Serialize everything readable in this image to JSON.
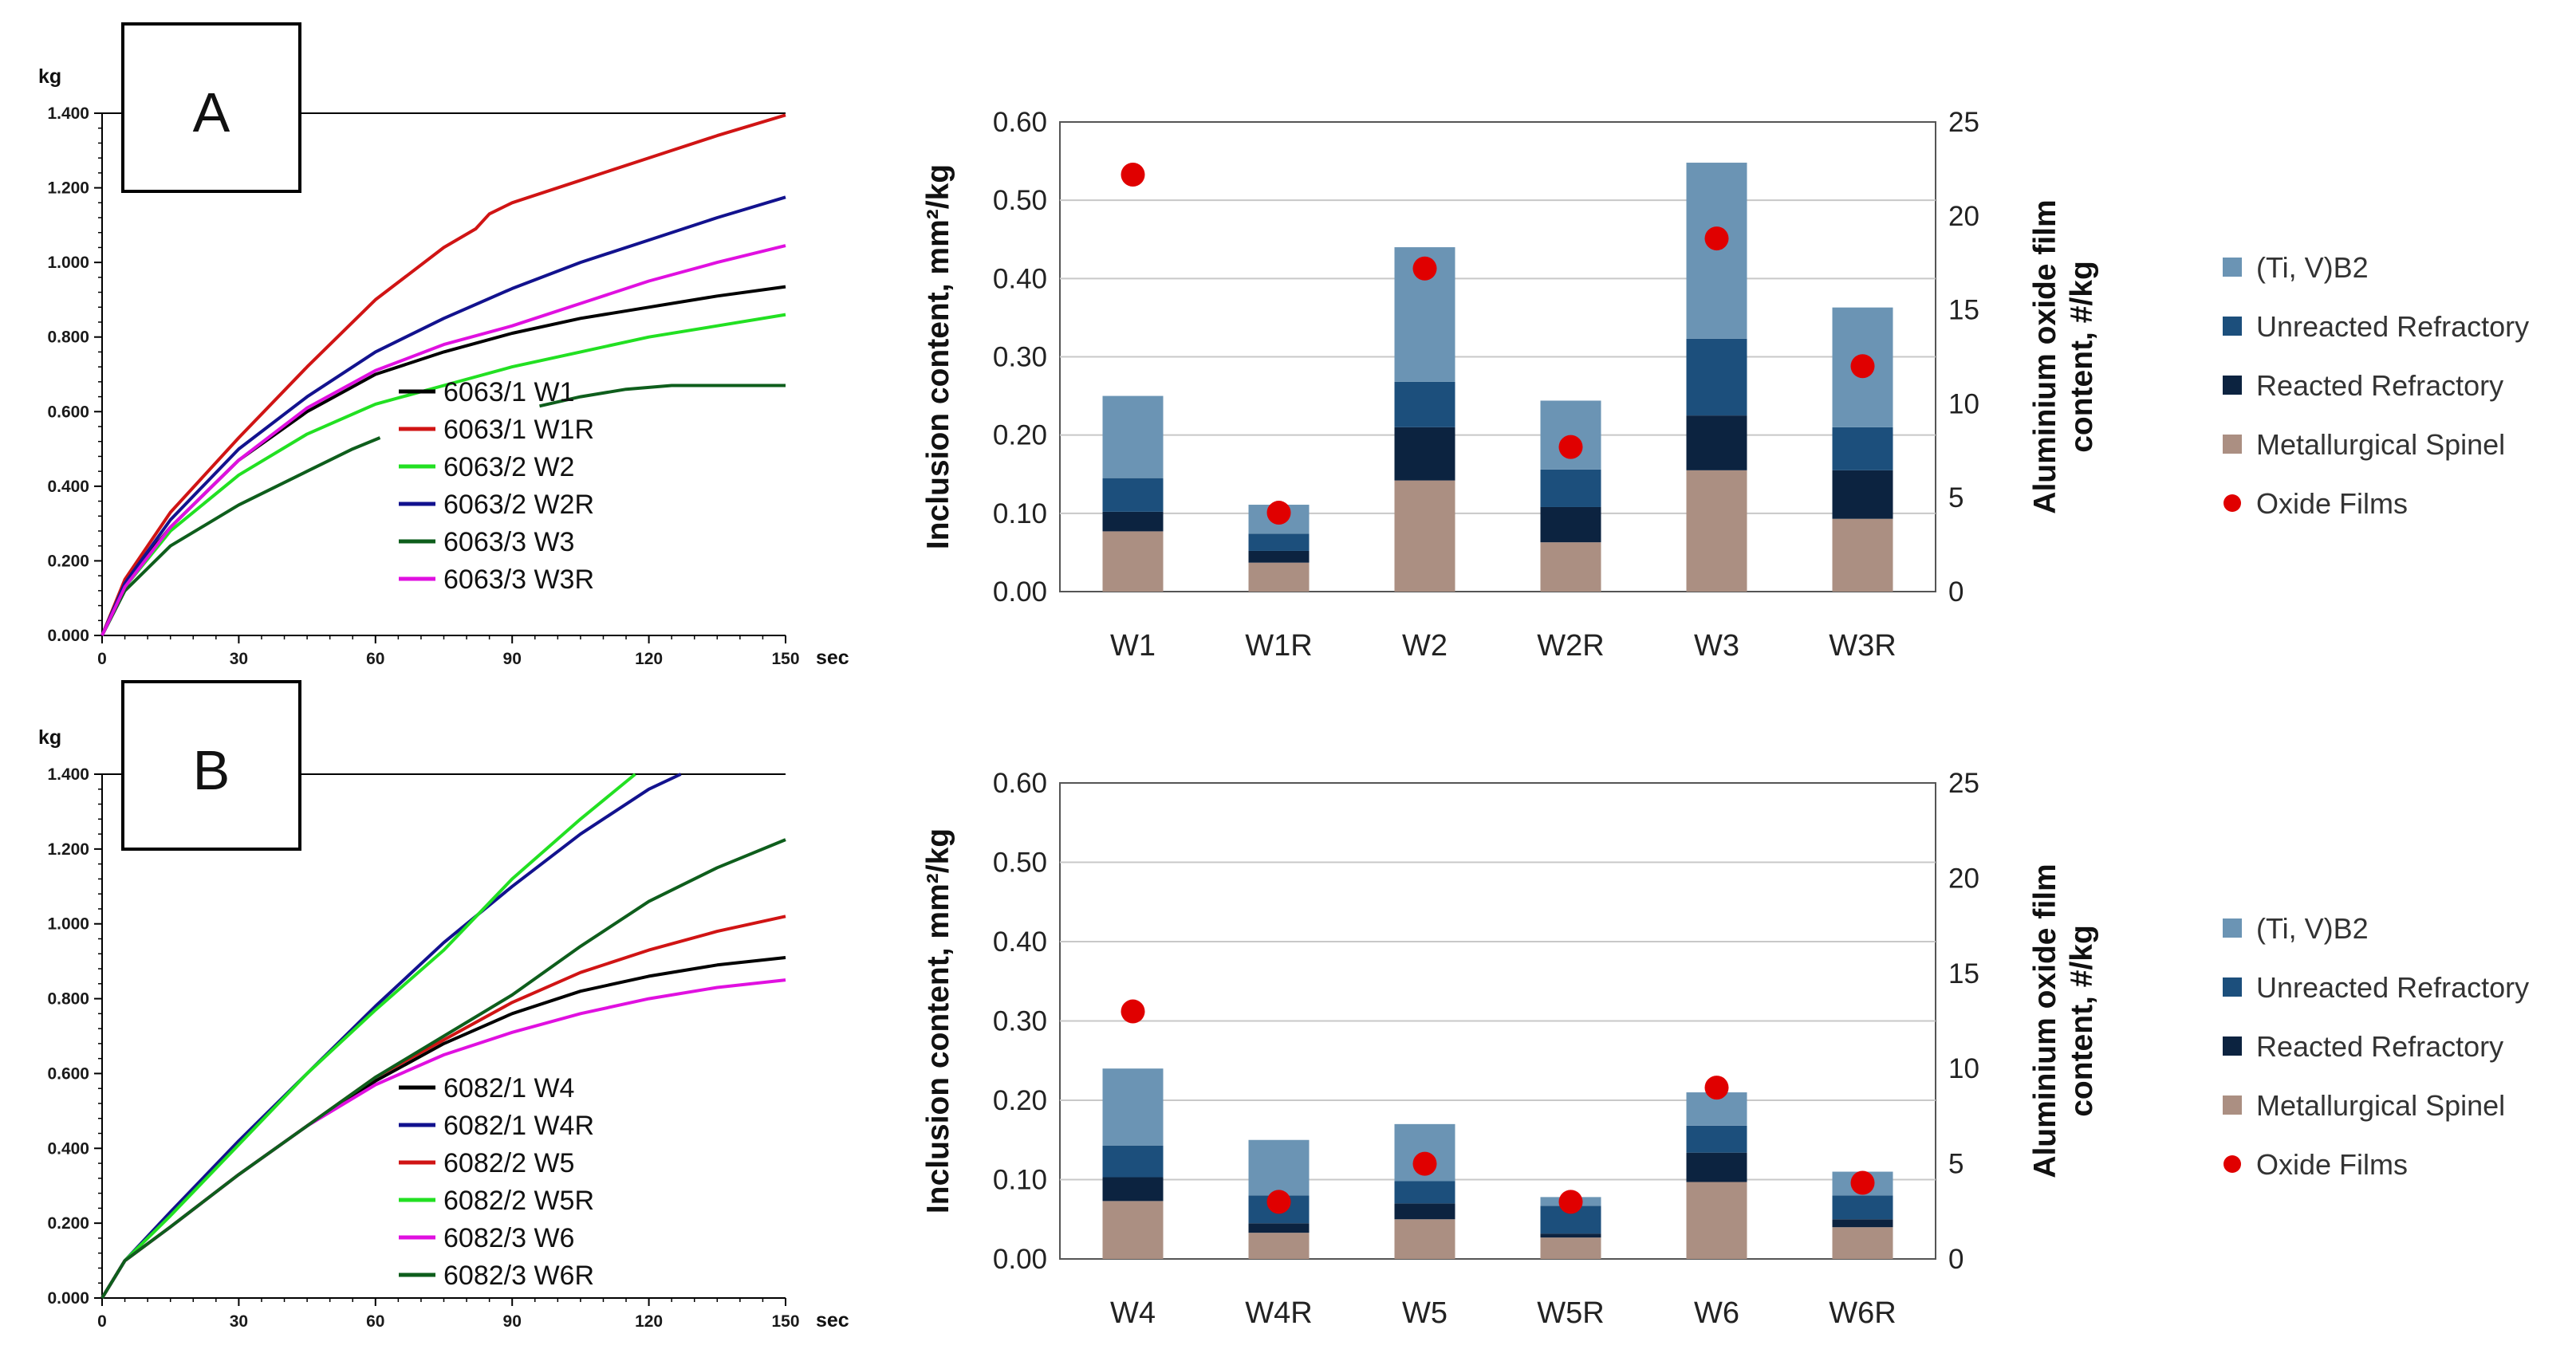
{
  "colors": {
    "tivb2": "#6b94b4",
    "unreacted": "#1c4f7c",
    "reacted": "#0c2340",
    "spinel": "#ab8f82",
    "oxide": "#e00000",
    "s1": "#000000",
    "s2": "#d01414",
    "s3": "#22e022",
    "s4": "#12128e",
    "s5": "#0e5e1c",
    "s6": "#e010e0"
  },
  "chart_data": [
    {
      "id": "A-line",
      "type": "line",
      "panel_label": "A",
      "y_unit": "kg",
      "x_unit": "sec",
      "xlim": [
        0,
        150
      ],
      "ylim": [
        0,
        1.4
      ],
      "x_ticks": [
        "0",
        "30",
        "60",
        "90",
        "120",
        "150"
      ],
      "y_ticks": [
        "0.000",
        "0.200",
        "0.400",
        "0.600",
        "0.800",
        "1.000",
        "1.200",
        "1.400"
      ],
      "series": [
        {
          "name": "6063/1 W1",
          "color_key": "s1",
          "x": [
            0,
            5,
            15,
            30,
            45,
            60,
            75,
            90,
            105,
            120,
            135,
            150
          ],
          "y": [
            0,
            0.14,
            0.29,
            0.47,
            0.6,
            0.7,
            0.76,
            0.81,
            0.85,
            0.88,
            0.91,
            0.935
          ]
        },
        {
          "name": "6063/1 W1R",
          "color_key": "s2",
          "x": [
            0,
            5,
            15,
            30,
            45,
            60,
            75,
            82,
            85,
            90,
            105,
            120,
            135,
            150
          ],
          "y": [
            0,
            0.15,
            0.33,
            0.53,
            0.72,
            0.9,
            1.04,
            1.09,
            1.13,
            1.16,
            1.22,
            1.28,
            1.34,
            1.395
          ]
        },
        {
          "name": "6063/2 W2",
          "color_key": "s3",
          "x": [
            0,
            5,
            15,
            30,
            45,
            60,
            75,
            90,
            105,
            120,
            135,
            150
          ],
          "y": [
            0,
            0.13,
            0.28,
            0.43,
            0.54,
            0.62,
            0.67,
            0.72,
            0.76,
            0.8,
            0.83,
            0.86
          ]
        },
        {
          "name": "6063/2 W2R",
          "color_key": "s4",
          "x": [
            0,
            5,
            15,
            30,
            45,
            60,
            75,
            90,
            105,
            120,
            135,
            150
          ],
          "y": [
            0,
            0.14,
            0.31,
            0.5,
            0.64,
            0.76,
            0.85,
            0.93,
            1.0,
            1.06,
            1.12,
            1.175
          ]
        },
        {
          "name": "6063/3 W3",
          "color_key": "s5",
          "segments": [
            {
              "x": [
                0,
                5,
                15,
                30,
                45,
                55,
                61
              ],
              "y": [
                0,
                0.12,
                0.24,
                0.35,
                0.44,
                0.5,
                0.53
              ]
            },
            {
              "x": [
                96,
                105,
                115,
                125,
                150
              ],
              "y": [
                0.615,
                0.64,
                0.66,
                0.67,
                0.67
              ]
            }
          ]
        },
        {
          "name": "6063/3 W3R",
          "color_key": "s6",
          "x": [
            0,
            5,
            15,
            30,
            45,
            60,
            75,
            90,
            105,
            120,
            135,
            150
          ],
          "y": [
            0,
            0.13,
            0.29,
            0.47,
            0.61,
            0.71,
            0.78,
            0.83,
            0.89,
            0.95,
            1.0,
            1.045
          ]
        }
      ]
    },
    {
      "id": "A-bar",
      "type": "bar",
      "stacked": true,
      "categories": [
        "W1",
        "W1R",
        "W2",
        "W2R",
        "W3",
        "W3R"
      ],
      "ylim": [
        0,
        0.6
      ],
      "y_ticks": [
        "0.00",
        "0.10",
        "0.20",
        "0.30",
        "0.40",
        "0.50",
        "0.60"
      ],
      "y2lim": [
        0,
        25
      ],
      "y2_ticks": [
        "0",
        "5",
        "10",
        "15",
        "20",
        "25"
      ],
      "ylabel": "Inclusion content, mm²/kg",
      "y2label_line1": "Aluminium oxide film",
      "y2label_line2": "content, #/kg",
      "series": [
        {
          "name": "Metallurgical Spinel",
          "color_key": "spinel",
          "values": [
            0.077,
            0.037,
            0.142,
            0.063,
            0.155,
            0.093
          ]
        },
        {
          "name": "Reacted Refractory",
          "color_key": "reacted",
          "values": [
            0.025,
            0.015,
            0.068,
            0.045,
            0.07,
            0.062
          ]
        },
        {
          "name": "Unreacted Refractory",
          "color_key": "unreacted",
          "values": [
            0.043,
            0.022,
            0.058,
            0.048,
            0.098,
            0.055
          ]
        },
        {
          "name": "(Ti, V)B2",
          "color_key": "tivb2",
          "values": [
            0.105,
            0.037,
            0.172,
            0.088,
            0.225,
            0.153
          ]
        }
      ],
      "points": {
        "name": "Oxide Films",
        "color_key": "oxide",
        "values": [
          22.2,
          4.2,
          17.2,
          7.7,
          18.8,
          12.0
        ]
      },
      "legend": [
        "(Ti, V)B2",
        "Unreacted Refractory",
        "Reacted Refractory",
        "Metallurgical Spinel",
        "Oxide Films"
      ]
    },
    {
      "id": "B-line",
      "type": "line",
      "panel_label": "B",
      "y_unit": "kg",
      "x_unit": "sec",
      "xlim": [
        0,
        150
      ],
      "ylim": [
        0,
        1.4
      ],
      "x_ticks": [
        "0",
        "30",
        "60",
        "90",
        "120",
        "150"
      ],
      "y_ticks": [
        "0.000",
        "0.200",
        "0.400",
        "0.600",
        "0.800",
        "1.000",
        "1.200",
        "1.400"
      ],
      "series": [
        {
          "name": "6082/1 W4",
          "color_key": "s1",
          "x": [
            0,
            5,
            15,
            30,
            45,
            60,
            75,
            90,
            105,
            120,
            135,
            150
          ],
          "y": [
            0,
            0.1,
            0.19,
            0.33,
            0.46,
            0.58,
            0.68,
            0.76,
            0.82,
            0.86,
            0.89,
            0.91
          ]
        },
        {
          "name": "6082/1 W4R",
          "color_key": "s4",
          "x": [
            0,
            5,
            15,
            30,
            45,
            60,
            75,
            90,
            105,
            120,
            127
          ],
          "y": [
            0,
            0.1,
            0.23,
            0.42,
            0.6,
            0.78,
            0.95,
            1.1,
            1.24,
            1.36,
            1.4
          ]
        },
        {
          "name": "6082/2 W5",
          "color_key": "s2",
          "x": [
            0,
            5,
            15,
            30,
            45,
            60,
            75,
            90,
            105,
            120,
            135,
            150
          ],
          "y": [
            0,
            0.1,
            0.19,
            0.33,
            0.46,
            0.59,
            0.69,
            0.79,
            0.87,
            0.93,
            0.98,
            1.02
          ]
        },
        {
          "name": "6082/2 W5R",
          "color_key": "s3",
          "x": [
            0,
            5,
            15,
            30,
            45,
            60,
            75,
            90,
            105,
            117
          ],
          "y": [
            0,
            0.1,
            0.22,
            0.41,
            0.6,
            0.77,
            0.93,
            1.12,
            1.28,
            1.4
          ]
        },
        {
          "name": "6082/3 W6",
          "color_key": "s6",
          "x": [
            0,
            5,
            15,
            30,
            45,
            60,
            75,
            90,
            105,
            120,
            135,
            150
          ],
          "y": [
            0,
            0.1,
            0.19,
            0.33,
            0.46,
            0.57,
            0.65,
            0.71,
            0.76,
            0.8,
            0.83,
            0.85
          ]
        },
        {
          "name": "6082/3 W6R",
          "color_key": "s5",
          "x": [
            0,
            5,
            15,
            30,
            45,
            60,
            75,
            90,
            105,
            120,
            135,
            150
          ],
          "y": [
            0,
            0.1,
            0.19,
            0.33,
            0.46,
            0.59,
            0.7,
            0.81,
            0.94,
            1.06,
            1.15,
            1.225
          ]
        }
      ]
    },
    {
      "id": "B-bar",
      "type": "bar",
      "stacked": true,
      "categories": [
        "W4",
        "W4R",
        "W5",
        "W5R",
        "W6",
        "W6R"
      ],
      "ylim": [
        0,
        0.6
      ],
      "y_ticks": [
        "0.00",
        "0.10",
        "0.20",
        "0.30",
        "0.40",
        "0.50",
        "0.60"
      ],
      "y2lim": [
        0,
        25
      ],
      "y2_ticks": [
        "0",
        "5",
        "10",
        "15",
        "20",
        "25"
      ],
      "ylabel": "Inclusion content, mm²/kg",
      "y2label_line1": "Aluminium oxide film",
      "y2label_line2": "content, #/kg",
      "series": [
        {
          "name": "Metallurgical Spinel",
          "color_key": "spinel",
          "values": [
            0.073,
            0.033,
            0.05,
            0.027,
            0.097,
            0.04
          ]
        },
        {
          "name": "Reacted Refractory",
          "color_key": "reacted",
          "values": [
            0.03,
            0.012,
            0.02,
            0.005,
            0.037,
            0.01
          ]
        },
        {
          "name": "Unreacted Refractory",
          "color_key": "unreacted",
          "values": [
            0.04,
            0.035,
            0.028,
            0.035,
            0.034,
            0.03
          ]
        },
        {
          "name": "(Ti, V)B2",
          "color_key": "tivb2",
          "values": [
            0.097,
            0.07,
            0.072,
            0.011,
            0.042,
            0.03
          ]
        }
      ],
      "points": {
        "name": "Oxide Films",
        "color_key": "oxide",
        "values": [
          13.0,
          3.0,
          5.0,
          3.0,
          9.0,
          4.0
        ]
      },
      "legend": [
        "(Ti, V)B2",
        "Unreacted Refractory",
        "Reacted Refractory",
        "Metallurgical Spinel",
        "Oxide Films"
      ]
    }
  ]
}
